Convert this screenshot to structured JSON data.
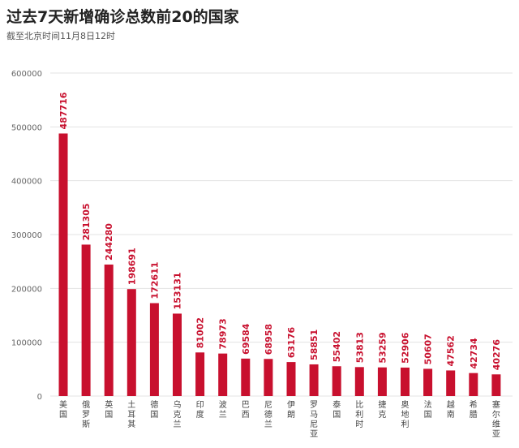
{
  "title": "过去7天新增确诊总数前20的国家",
  "subtitle": "截至北京时间11月8日12时",
  "chart_data": {
    "type": "bar",
    "title": "过去7天新增确诊总数前20的国家",
    "subtitle": "截至北京时间11月8日12时",
    "xlabel": "",
    "ylabel": "",
    "ylim": [
      0,
      600000
    ],
    "yticks": [
      0,
      100000,
      200000,
      300000,
      400000,
      500000,
      600000
    ],
    "grid": true,
    "bar_color": "#c8102e",
    "categories": [
      "美国",
      "俄罗斯",
      "英国",
      "土耳其",
      "德国",
      "乌克兰",
      "印度",
      "波兰",
      "巴西",
      "尼德兰",
      "伊朗",
      "罗马尼亚",
      "泰国",
      "比利时",
      "捷克",
      "奥地利",
      "法国",
      "越南",
      "希腊",
      "塞尔维亚"
    ],
    "values": [
      487716,
      281305,
      244280,
      198691,
      172611,
      153131,
      81002,
      78973,
      69584,
      68958,
      63176,
      58851,
      55402,
      53813,
      53259,
      52906,
      50607,
      47562,
      42734,
      40276
    ]
  }
}
